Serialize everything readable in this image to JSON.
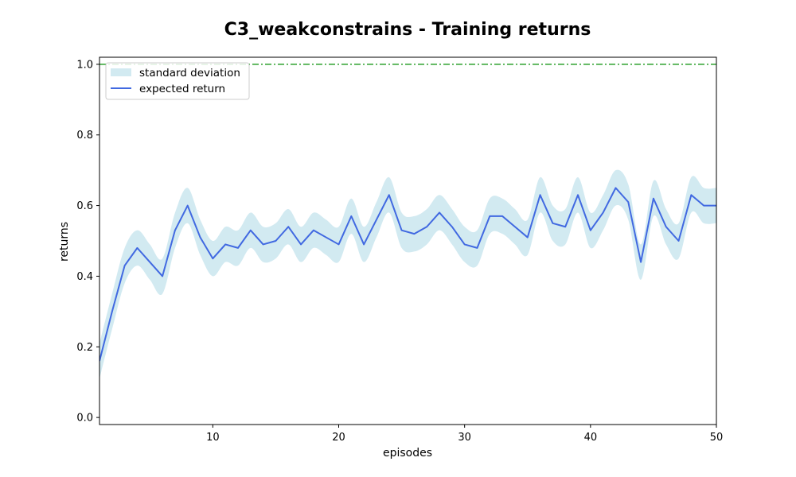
{
  "chart_data": {
    "type": "line",
    "title": "C3_weakconstrains - Training returns",
    "xlabel": "episodes",
    "ylabel": "returns",
    "xlim": [
      1,
      50
    ],
    "ylim": [
      -0.02,
      1.02
    ],
    "xticks": [
      10,
      20,
      30,
      40,
      50
    ],
    "yticks": [
      0.0,
      0.2,
      0.4,
      0.6,
      0.8,
      1.0
    ],
    "grid": false,
    "legend_position": "top-left",
    "reference_line": {
      "y": 1.0,
      "color": "#2ca02c",
      "style": "dash-dot"
    },
    "x": [
      1,
      2,
      3,
      4,
      5,
      6,
      7,
      8,
      9,
      10,
      11,
      12,
      13,
      14,
      15,
      16,
      17,
      18,
      19,
      20,
      21,
      22,
      23,
      24,
      25,
      26,
      27,
      28,
      29,
      30,
      31,
      32,
      33,
      34,
      35,
      36,
      37,
      38,
      39,
      40,
      41,
      42,
      43,
      44,
      45,
      46,
      47,
      48,
      49,
      50
    ],
    "series": [
      {
        "name": "expected return",
        "color": "#4169e1",
        "values": [
          0.16,
          0.3,
          0.43,
          0.48,
          0.44,
          0.4,
          0.53,
          0.6,
          0.51,
          0.45,
          0.49,
          0.48,
          0.53,
          0.49,
          0.5,
          0.54,
          0.49,
          0.53,
          0.51,
          0.49,
          0.57,
          0.49,
          0.56,
          0.63,
          0.53,
          0.52,
          0.54,
          0.58,
          0.54,
          0.49,
          0.48,
          0.57,
          0.57,
          0.54,
          0.51,
          0.63,
          0.55,
          0.54,
          0.63,
          0.53,
          0.58,
          0.65,
          0.61,
          0.44,
          0.62,
          0.54,
          0.5,
          0.63,
          0.6,
          0.6
        ]
      },
      {
        "name": "standard deviation",
        "color": "#add8e6",
        "values": [
          0.05,
          0.05,
          0.05,
          0.05,
          0.05,
          0.05,
          0.05,
          0.05,
          0.05,
          0.05,
          0.05,
          0.05,
          0.05,
          0.05,
          0.05,
          0.05,
          0.05,
          0.05,
          0.05,
          0.05,
          0.05,
          0.05,
          0.05,
          0.05,
          0.05,
          0.05,
          0.05,
          0.05,
          0.05,
          0.05,
          0.05,
          0.05,
          0.05,
          0.05,
          0.05,
          0.05,
          0.05,
          0.05,
          0.05,
          0.05,
          0.05,
          0.05,
          0.05,
          0.05,
          0.05,
          0.05,
          0.05,
          0.05,
          0.05,
          0.05
        ]
      }
    ]
  }
}
